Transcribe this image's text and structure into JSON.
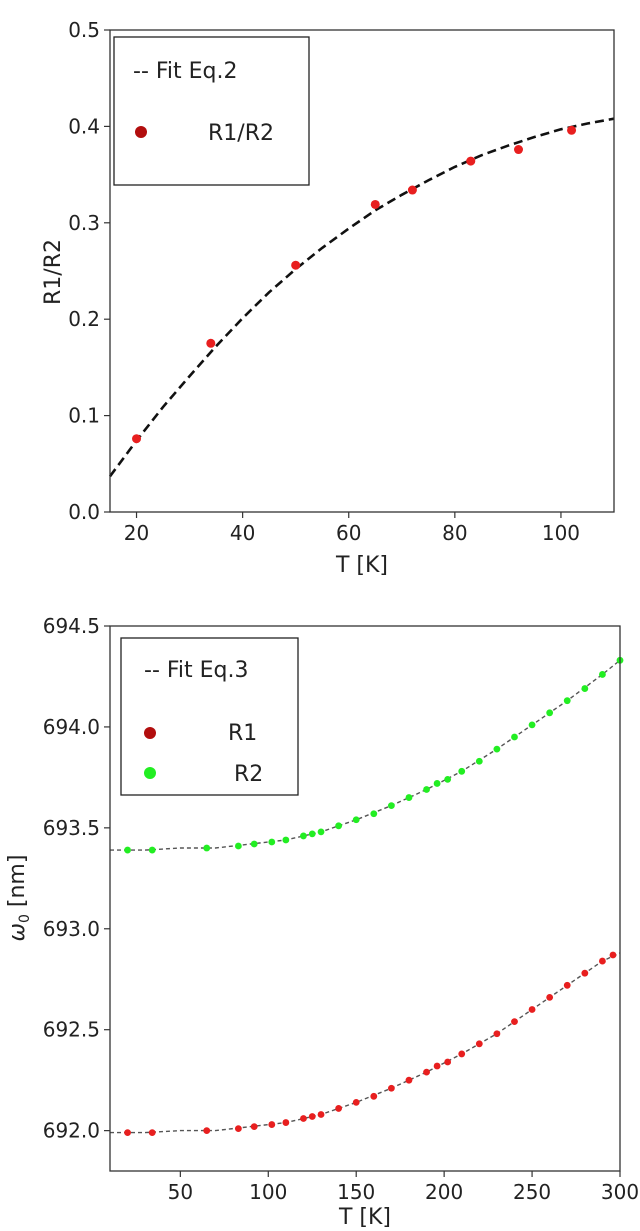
{
  "chart_data": [
    {
      "type": "scatter",
      "xlabel": "T [K]",
      "ylabel": "R1/R2",
      "xlim": [
        15,
        110
      ],
      "ylim": [
        0.0,
        0.5
      ],
      "xticks": [
        "20",
        "40",
        "60",
        "80",
        "100"
      ],
      "xtick_values": [
        20,
        40,
        60,
        80,
        100
      ],
      "yticks": [
        "0.0",
        "0.1",
        "0.2",
        "0.3",
        "0.4",
        "0.5"
      ],
      "ytick_values": [
        0.0,
        0.1,
        0.2,
        0.3,
        0.4,
        0.5
      ],
      "grid": false,
      "legend_position": "top-left",
      "legend": {
        "fit_label": "-- Fit Eq.2",
        "marker_label": "R1/R2"
      },
      "series": [
        {
          "name": "R1/R2",
          "color": "#e81f1f",
          "legend_color": "#b20e0e",
          "x": [
            20,
            34,
            50,
            65,
            72,
            83,
            92,
            102
          ],
          "y": [
            0.076,
            0.175,
            0.256,
            0.319,
            0.334,
            0.364,
            0.376,
            0.396
          ]
        }
      ],
      "fit": {
        "name": "Fit Eq.2",
        "color": "#111111",
        "x": [
          15,
          20,
          25,
          30,
          35,
          40,
          45,
          50,
          55,
          60,
          65,
          70,
          75,
          80,
          85,
          90,
          95,
          100,
          105,
          110
        ],
        "y": [
          0.037,
          0.074,
          0.109,
          0.141,
          0.172,
          0.201,
          0.228,
          0.252,
          0.274,
          0.294,
          0.313,
          0.329,
          0.344,
          0.358,
          0.37,
          0.38,
          0.389,
          0.397,
          0.403,
          0.408
        ]
      }
    },
    {
      "type": "scatter",
      "xlabel": "T [K]",
      "ylabel": "ω0 [nm]",
      "xlim": [
        10,
        300
      ],
      "ylim": [
        691.8,
        694.5
      ],
      "xticks": [
        "50",
        "100",
        "150",
        "200",
        "250",
        "300"
      ],
      "xtick_values": [
        50,
        100,
        150,
        200,
        250,
        300
      ],
      "yticks": [
        "692.0",
        "692.5",
        "693.0",
        "693.5",
        "694.0",
        "694.5"
      ],
      "ytick_values": [
        692.0,
        692.5,
        693.0,
        693.5,
        694.0,
        694.5
      ],
      "grid": false,
      "legend_position": "top-left",
      "legend": {
        "fit_label": "-- Fit Eq.3",
        "r1_label": "R1",
        "r2_label": "R2"
      },
      "series": [
        {
          "name": "R1",
          "color": "#e81f1f",
          "legend_color": "#b20e0e",
          "x": [
            20,
            34,
            65,
            83,
            92,
            102,
            110,
            120,
            125,
            130,
            140,
            150,
            160,
            170,
            180,
            190,
            196,
            202,
            210,
            220,
            230,
            240,
            250,
            260,
            270,
            280,
            290,
            296
          ],
          "y": [
            691.99,
            691.99,
            692.0,
            692.01,
            692.02,
            692.03,
            692.04,
            692.06,
            692.07,
            692.08,
            692.11,
            692.14,
            692.17,
            692.21,
            692.25,
            692.29,
            692.32,
            692.34,
            692.38,
            692.43,
            692.48,
            692.54,
            692.6,
            692.66,
            692.72,
            692.78,
            692.84,
            692.87
          ]
        },
        {
          "name": "R2",
          "color": "#22ee22",
          "legend_color": "#22ee22",
          "x": [
            20,
            34,
            65,
            83,
            92,
            102,
            110,
            120,
            125,
            130,
            140,
            150,
            160,
            170,
            180,
            190,
            196,
            202,
            210,
            220,
            230,
            240,
            250,
            260,
            270,
            280,
            290,
            300
          ],
          "y": [
            693.39,
            693.39,
            693.4,
            693.41,
            693.42,
            693.43,
            693.44,
            693.46,
            693.47,
            693.48,
            693.51,
            693.54,
            693.57,
            693.61,
            693.65,
            693.69,
            693.72,
            693.74,
            693.78,
            693.83,
            693.89,
            693.95,
            694.01,
            694.07,
            694.13,
            694.19,
            694.26,
            694.33
          ]
        }
      ],
      "fits": [
        {
          "name": "Fit Eq.3 R1",
          "color": "#555555",
          "x": [
            10,
            30,
            50,
            70,
            90,
            110,
            130,
            150,
            170,
            190,
            210,
            230,
            250,
            270,
            290,
            300
          ],
          "y": [
            691.99,
            691.99,
            692.0,
            692.0,
            692.02,
            692.04,
            692.08,
            692.14,
            692.21,
            692.29,
            692.38,
            692.48,
            692.6,
            692.72,
            692.84,
            692.88
          ]
        },
        {
          "name": "Fit Eq.3 R2",
          "color": "#555555",
          "x": [
            10,
            30,
            50,
            70,
            90,
            110,
            130,
            150,
            170,
            190,
            210,
            230,
            250,
            270,
            290,
            300
          ],
          "y": [
            693.39,
            693.39,
            693.4,
            693.4,
            693.42,
            693.44,
            693.48,
            693.54,
            693.61,
            693.69,
            693.78,
            693.89,
            694.01,
            694.13,
            694.26,
            694.33
          ]
        }
      ]
    }
  ]
}
